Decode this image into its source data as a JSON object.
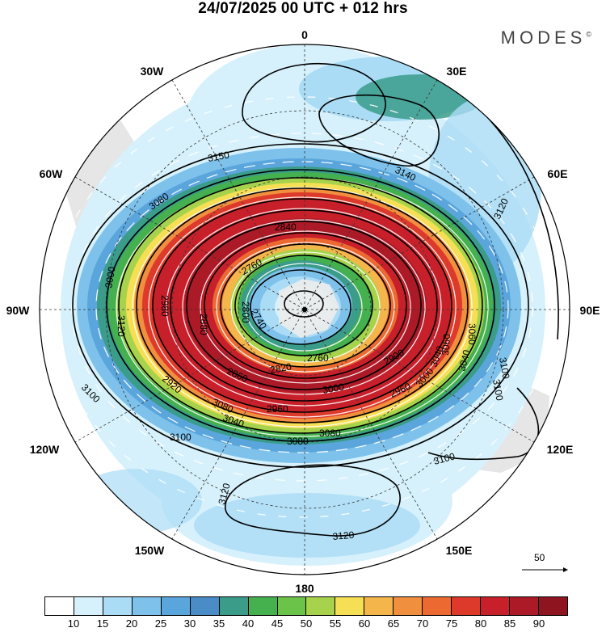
{
  "title": "24/07/2025  00 UTC  + 012 hrs",
  "brand": "MODES",
  "brand_mark": "©",
  "longitude_labels": [
    {
      "name": "lon-0",
      "text": "0"
    },
    {
      "name": "lon-30e",
      "text": "30E"
    },
    {
      "name": "lon-60e",
      "text": "60E"
    },
    {
      "name": "lon-90e",
      "text": "90E"
    },
    {
      "name": "lon-120e",
      "text": "120E"
    },
    {
      "name": "lon-150e",
      "text": "150E"
    },
    {
      "name": "lon-180",
      "text": "180"
    },
    {
      "name": "lon-150w",
      "text": "150W"
    },
    {
      "name": "lon-120w",
      "text": "120W"
    },
    {
      "name": "lon-90w",
      "text": "90W"
    },
    {
      "name": "lon-60w",
      "text": "60W"
    },
    {
      "name": "lon-30w",
      "text": "30W"
    }
  ],
  "contour_labels": [
    "3150",
    "3140",
    "3120",
    "3100",
    "3080",
    "3080",
    "3040",
    "3000",
    "2960",
    "2920",
    "2880",
    "2840",
    "2800",
    "2760",
    "2740",
    "2760",
    "2820",
    "2860",
    "2900",
    "2960",
    "3000",
    "3040",
    "3080",
    "3060",
    "3040",
    "3100",
    "3100",
    "3100",
    "3120",
    "3120",
    "3080",
    "3000",
    "3120",
    "3100",
    "2980",
    "3060"
  ],
  "reference_vector": {
    "label": "50"
  },
  "colorbar": {
    "colors": [
      "#ffffff",
      "#d6f1fb",
      "#aadcf6",
      "#7ec2ec",
      "#5aa6dc",
      "#4a8dc6",
      "#3a9c89",
      "#44b04e",
      "#6cc34a",
      "#a7d34c",
      "#f6df55",
      "#f4b54a",
      "#f08f3e",
      "#ec6a32",
      "#dd3a2b",
      "#c8202b",
      "#ad1a27",
      "#8e1420"
    ],
    "ticks": [
      "10",
      "15",
      "20",
      "25",
      "30",
      "35",
      "40",
      "45",
      "50",
      "55",
      "60",
      "65",
      "70",
      "75",
      "80",
      "85",
      "90"
    ]
  }
}
